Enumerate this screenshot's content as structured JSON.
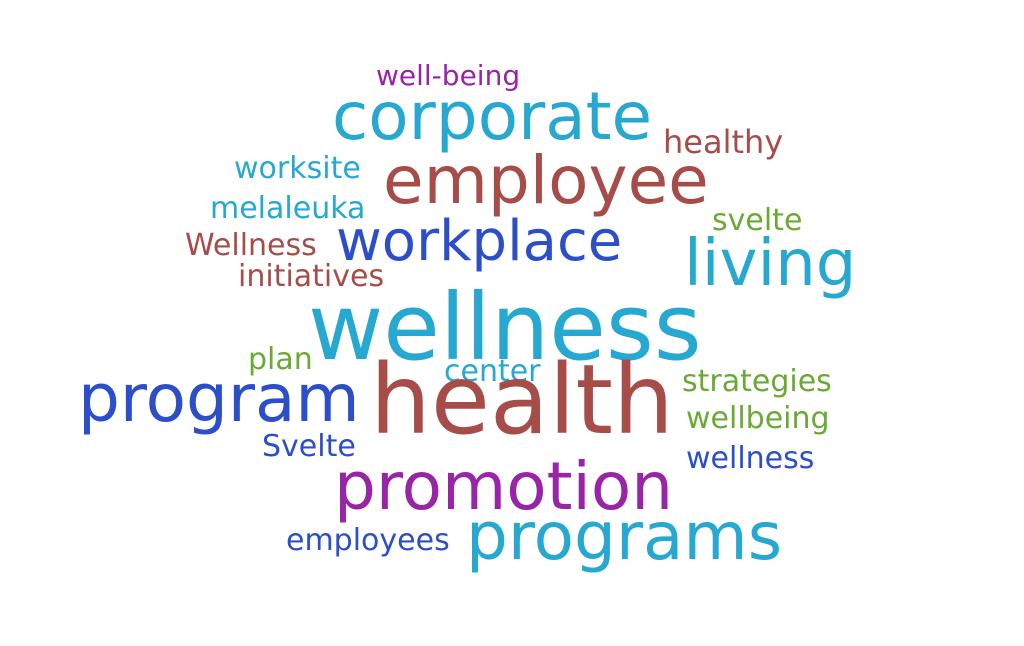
{
  "word_cloud": {
    "words": {
      "well_being": "well-being",
      "corporate": "corporate",
      "healthy": "healthy",
      "worksite": "worksite",
      "employee": "employee",
      "melaleuka": "melaleuka",
      "svelte_lower": "svelte",
      "Wellness_cap": "Wellness",
      "workplace": "workplace",
      "living": "living",
      "initiatives": "initiatives",
      "wellness_big": "wellness",
      "plan": "plan",
      "center": "center",
      "strategies": "strategies",
      "program": "program",
      "health": "health",
      "wellbeing": "wellbeing",
      "Svelte_cap": "Svelte",
      "wellness_small": "wellness",
      "promotion": "promotion",
      "employees": "employees",
      "programs": "programs"
    },
    "colors": {
      "cyan": "#26a8d0",
      "brick": "#a64d4a",
      "blue": "#2c4fc9",
      "purple": "#9825a6",
      "green": "#6aaa34"
    }
  }
}
